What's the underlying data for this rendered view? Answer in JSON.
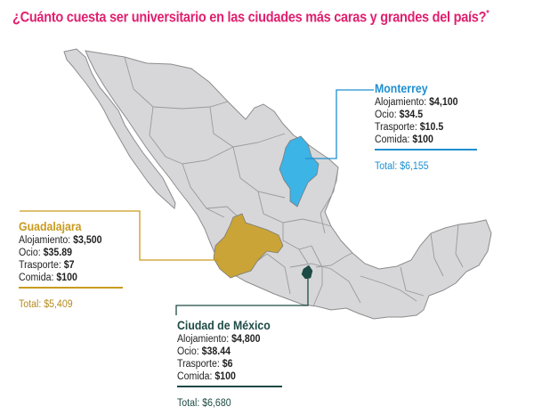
{
  "title": "¿Cuánto cuesta ser universitario en las ciudades más caras y grandes del país?",
  "title_mark": "*",
  "colors": {
    "title": "#e0206f",
    "land": "#d7d7d9",
    "borders": "#8c8c8e",
    "monterrey": "#3db4e6",
    "guadalajara": "#caa437",
    "cdmx": "#1d4a44"
  },
  "cities": {
    "monterrey": {
      "name": "Monterrey",
      "rows": [
        {
          "label": "Alojamiento: ",
          "value": "$4,100"
        },
        {
          "label": "Ocio: ",
          "value": "$34.5"
        },
        {
          "label": "Trasporte: ",
          "value": "$10.5"
        },
        {
          "label": "Comida: ",
          "value": "$100"
        }
      ],
      "total": "Total: $6,155"
    },
    "guadalajara": {
      "name": "Guadalajara",
      "rows": [
        {
          "label": "Alojamiento: ",
          "value": "$3,500"
        },
        {
          "label": "Ocio: ",
          "value": "$35.89"
        },
        {
          "label": "Trasporte: ",
          "value": "$7"
        },
        {
          "label": "Comida: ",
          "value": "$100"
        }
      ],
      "total": "Total: $5,409"
    },
    "cdmx": {
      "name": "Ciudad de México",
      "rows": [
        {
          "label": "Alojamiento: ",
          "value": "$4,800"
        },
        {
          "label": "Ocio: ",
          "value": "$38.44"
        },
        {
          "label": "Trasporte: ",
          "value": "$6"
        },
        {
          "label": "Comida: ",
          "value": "$100"
        }
      ],
      "total": "Total: $6,680"
    }
  }
}
